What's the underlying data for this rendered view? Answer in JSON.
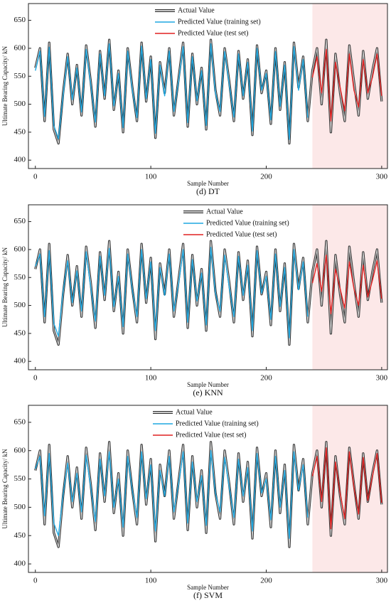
{
  "chart_data": [
    {
      "type": "line",
      "caption": "(d) DT",
      "xlabel": "Sample Number",
      "ylabel": "Ultimate Bearing Capacity/ kN",
      "xlim": [
        -6,
        305
      ],
      "ylim": [
        385,
        680
      ],
      "xticks": [
        0,
        100,
        200,
        300
      ],
      "yticks": [
        400,
        450,
        500,
        550,
        600,
        650
      ],
      "shaded_from_x": 240,
      "shade_color": "#fce8e8",
      "x": [
        0,
        4,
        8,
        12,
        16,
        20,
        24,
        28,
        32,
        36,
        40,
        44,
        48,
        52,
        56,
        60,
        64,
        68,
        72,
        76,
        80,
        84,
        88,
        92,
        96,
        100,
        104,
        108,
        112,
        116,
        120,
        124,
        128,
        132,
        136,
        140,
        144,
        148,
        152,
        156,
        160,
        164,
        168,
        172,
        176,
        180,
        184,
        188,
        192,
        196,
        200,
        204,
        208,
        212,
        216,
        220,
        224,
        228,
        232,
        236,
        240,
        244,
        248,
        252,
        256,
        260,
        264,
        268,
        272,
        276,
        280,
        284,
        288,
        292,
        296,
        300
      ],
      "series": [
        {
          "name": "Actual Value",
          "color": "#555555",
          "values": [
            565,
            600,
            470,
            610,
            455,
            430,
            520,
            590,
            500,
            570,
            480,
            605,
            540,
            460,
            595,
            510,
            615,
            490,
            560,
            450,
            600,
            530,
            470,
            610,
            505,
            585,
            440,
            575,
            520,
            600,
            480,
            545,
            610,
            460,
            590,
            500,
            565,
            455,
            615,
            525,
            480,
            600,
            540,
            470,
            595,
            510,
            580,
            445,
            605,
            520,
            560,
            465,
            600,
            490,
            575,
            430,
            610,
            530,
            585,
            470,
            560,
            600,
            500,
            615,
            450,
            590,
            520,
            470,
            605,
            540,
            480,
            595,
            510,
            560,
            600,
            505
          ]
        },
        {
          "name": "Predicted Value (training set)",
          "color": "#1ea7e0",
          "values": [
            560,
            595,
            478,
            602,
            462,
            438,
            515,
            585,
            508,
            565,
            486,
            598,
            535,
            468,
            590,
            515,
            608,
            497,
            555,
            458,
            595,
            525,
            476,
            604,
            510,
            580,
            448,
            570,
            515,
            595,
            487,
            540,
            603,
            467,
            585,
            506,
            560,
            462,
            608,
            520,
            487,
            594,
            535,
            477,
            590,
            515,
            575,
            452,
            600,
            525,
            555,
            472,
            594,
            496,
            570,
            437,
            603,
            525,
            580,
            476,
            null,
            null,
            null,
            null,
            null,
            null,
            null,
            null,
            null,
            null,
            null,
            null,
            null,
            null,
            null,
            null
          ]
        },
        {
          "name": "Predicted Value (test set)",
          "color": "#e02020",
          "values": [
            null,
            null,
            null,
            null,
            null,
            null,
            null,
            null,
            null,
            null,
            null,
            null,
            null,
            null,
            null,
            null,
            null,
            null,
            null,
            null,
            null,
            null,
            null,
            null,
            null,
            null,
            null,
            null,
            null,
            null,
            null,
            null,
            null,
            null,
            null,
            null,
            null,
            null,
            null,
            null,
            null,
            null,
            null,
            null,
            null,
            null,
            null,
            null,
            null,
            null,
            null,
            null,
            null,
            null,
            null,
            null,
            null,
            null,
            null,
            null,
            548,
            585,
            520,
            598,
            470,
            575,
            530,
            488,
            590,
            525,
            495,
            580,
            520,
            548,
            590,
            515
          ]
        }
      ]
    },
    {
      "type": "line",
      "caption": "(e) KNN",
      "xlabel": "Sample Number",
      "ylabel": "Ultimate Bearing Capacity/ kN",
      "xlim": [
        -6,
        305
      ],
      "ylim": [
        385,
        680
      ],
      "xticks": [
        0,
        100,
        200,
        300
      ],
      "yticks": [
        400,
        450,
        500,
        550,
        600,
        650
      ],
      "shaded_from_x": 240,
      "shade_color": "#fce8e8",
      "x": [
        0,
        4,
        8,
        12,
        16,
        20,
        24,
        28,
        32,
        36,
        40,
        44,
        48,
        52,
        56,
        60,
        64,
        68,
        72,
        76,
        80,
        84,
        88,
        92,
        96,
        100,
        104,
        108,
        112,
        116,
        120,
        124,
        128,
        132,
        136,
        140,
        144,
        148,
        152,
        156,
        160,
        164,
        168,
        172,
        176,
        180,
        184,
        188,
        192,
        196,
        200,
        204,
        208,
        212,
        216,
        220,
        224,
        228,
        232,
        236,
        240,
        244,
        248,
        252,
        256,
        260,
        264,
        268,
        272,
        276,
        280,
        284,
        288,
        292,
        296,
        300
      ],
      "series": [
        {
          "name": "Actual Value",
          "color": "#555555",
          "values": [
            565,
            600,
            470,
            610,
            455,
            430,
            520,
            590,
            500,
            570,
            480,
            605,
            540,
            460,
            595,
            510,
            615,
            490,
            560,
            450,
            600,
            530,
            470,
            610,
            505,
            585,
            440,
            575,
            520,
            600,
            480,
            545,
            610,
            460,
            590,
            500,
            565,
            455,
            615,
            525,
            480,
            600,
            540,
            470,
            595,
            510,
            580,
            445,
            605,
            520,
            560,
            465,
            600,
            490,
            575,
            430,
            610,
            530,
            585,
            470,
            560,
            600,
            500,
            615,
            450,
            590,
            520,
            470,
            605,
            540,
            480,
            595,
            510,
            560,
            600,
            505
          ]
        },
        {
          "name": "Predicted Value (training set)",
          "color": "#1ea7e0",
          "values": [
            570,
            592,
            480,
            598,
            468,
            445,
            525,
            580,
            505,
            562,
            490,
            596,
            532,
            472,
            588,
            518,
            602,
            498,
            552,
            462,
            592,
            528,
            480,
            600,
            512,
            578,
            455,
            568,
            518,
            592,
            490,
            538,
            600,
            470,
            582,
            508,
            558,
            465,
            604,
            522,
            490,
            590,
            532,
            480,
            588,
            518,
            572,
            455,
            598,
            522,
            552,
            475,
            592,
            498,
            568,
            442,
            600,
            528,
            578,
            480,
            null,
            null,
            null,
            null,
            null,
            null,
            null,
            null,
            null,
            null,
            null,
            null,
            null,
            null,
            null,
            null
          ]
        },
        {
          "name": "Predicted Value (test set)",
          "color": "#e02020",
          "values": [
            null,
            null,
            null,
            null,
            null,
            null,
            null,
            null,
            null,
            null,
            null,
            null,
            null,
            null,
            null,
            null,
            null,
            null,
            null,
            null,
            null,
            null,
            null,
            null,
            null,
            null,
            null,
            null,
            null,
            null,
            null,
            null,
            null,
            null,
            null,
            null,
            null,
            null,
            null,
            null,
            null,
            null,
            null,
            null,
            null,
            null,
            null,
            null,
            null,
            null,
            null,
            null,
            null,
            null,
            null,
            null,
            null,
            null,
            null,
            null,
            540,
            575,
            525,
            590,
            485,
            565,
            530,
            495,
            578,
            530,
            500,
            572,
            515,
            545,
            580,
            512
          ]
        }
      ]
    },
    {
      "type": "line",
      "caption": "(f) SVM",
      "xlabel": "Sample Number",
      "ylabel": "Ultimate Bearing Capacity/ kN",
      "xlim": [
        -6,
        305
      ],
      "ylim": [
        385,
        680
      ],
      "xticks": [
        0,
        100,
        200,
        300
      ],
      "yticks": [
        400,
        450,
        500,
        550,
        600,
        650
      ],
      "shaded_from_x": 240,
      "shade_color": "#fce8e8",
      "x": [
        0,
        4,
        8,
        12,
        16,
        20,
        24,
        28,
        32,
        36,
        40,
        44,
        48,
        52,
        56,
        60,
        64,
        68,
        72,
        76,
        80,
        84,
        88,
        92,
        96,
        100,
        104,
        108,
        112,
        116,
        120,
        124,
        128,
        132,
        136,
        140,
        144,
        148,
        152,
        156,
        160,
        164,
        168,
        172,
        176,
        180,
        184,
        188,
        192,
        196,
        200,
        204,
        208,
        212,
        216,
        220,
        224,
        228,
        232,
        236,
        240,
        244,
        248,
        252,
        256,
        260,
        264,
        268,
        272,
        276,
        280,
        284,
        288,
        292,
        296,
        300
      ],
      "series": [
        {
          "name": "Actual Value",
          "color": "#555555",
          "values": [
            565,
            600,
            470,
            610,
            455,
            430,
            520,
            590,
            500,
            570,
            480,
            605,
            540,
            460,
            595,
            510,
            615,
            490,
            560,
            450,
            600,
            530,
            470,
            610,
            505,
            585,
            440,
            575,
            520,
            600,
            480,
            545,
            610,
            460,
            590,
            500,
            565,
            455,
            615,
            525,
            480,
            600,
            540,
            470,
            595,
            510,
            580,
            445,
            605,
            520,
            560,
            465,
            600,
            490,
            575,
            430,
            610,
            530,
            585,
            470,
            560,
            600,
            500,
            615,
            450,
            590,
            520,
            470,
            605,
            540,
            480,
            595,
            510,
            560,
            600,
            505
          ]
        },
        {
          "name": "Predicted Value (training set)",
          "color": "#1ea7e0",
          "values": [
            568,
            590,
            485,
            595,
            472,
            450,
            522,
            578,
            510,
            560,
            492,
            592,
            535,
            475,
            585,
            520,
            598,
            500,
            550,
            465,
            590,
            530,
            482,
            598,
            515,
            575,
            458,
            565,
            520,
            590,
            492,
            540,
            598,
            472,
            580,
            510,
            556,
            468,
            600,
            525,
            492,
            588,
            535,
            482,
            585,
            520,
            570,
            458,
            595,
            525,
            550,
            478,
            590,
            500,
            565,
            445,
            598,
            530,
            575,
            482,
            null,
            null,
            null,
            null,
            null,
            null,
            null,
            null,
            null,
            null,
            null,
            null,
            null,
            null,
            null,
            null
          ]
        },
        {
          "name": "Predicted Value (test set)",
          "color": "#e02020",
          "values": [
            null,
            null,
            null,
            null,
            null,
            null,
            null,
            null,
            null,
            null,
            null,
            null,
            null,
            null,
            null,
            null,
            null,
            null,
            null,
            null,
            null,
            null,
            null,
            null,
            null,
            null,
            null,
            null,
            null,
            null,
            null,
            null,
            null,
            null,
            null,
            null,
            null,
            null,
            null,
            null,
            null,
            null,
            null,
            null,
            null,
            null,
            null,
            null,
            null,
            null,
            null,
            null,
            null,
            null,
            null,
            null,
            null,
            null,
            null,
            null,
            555,
            590,
            510,
            605,
            462,
            580,
            525,
            480,
            598,
            535,
            488,
            588,
            512,
            555,
            595,
            508
          ]
        }
      ]
    }
  ]
}
